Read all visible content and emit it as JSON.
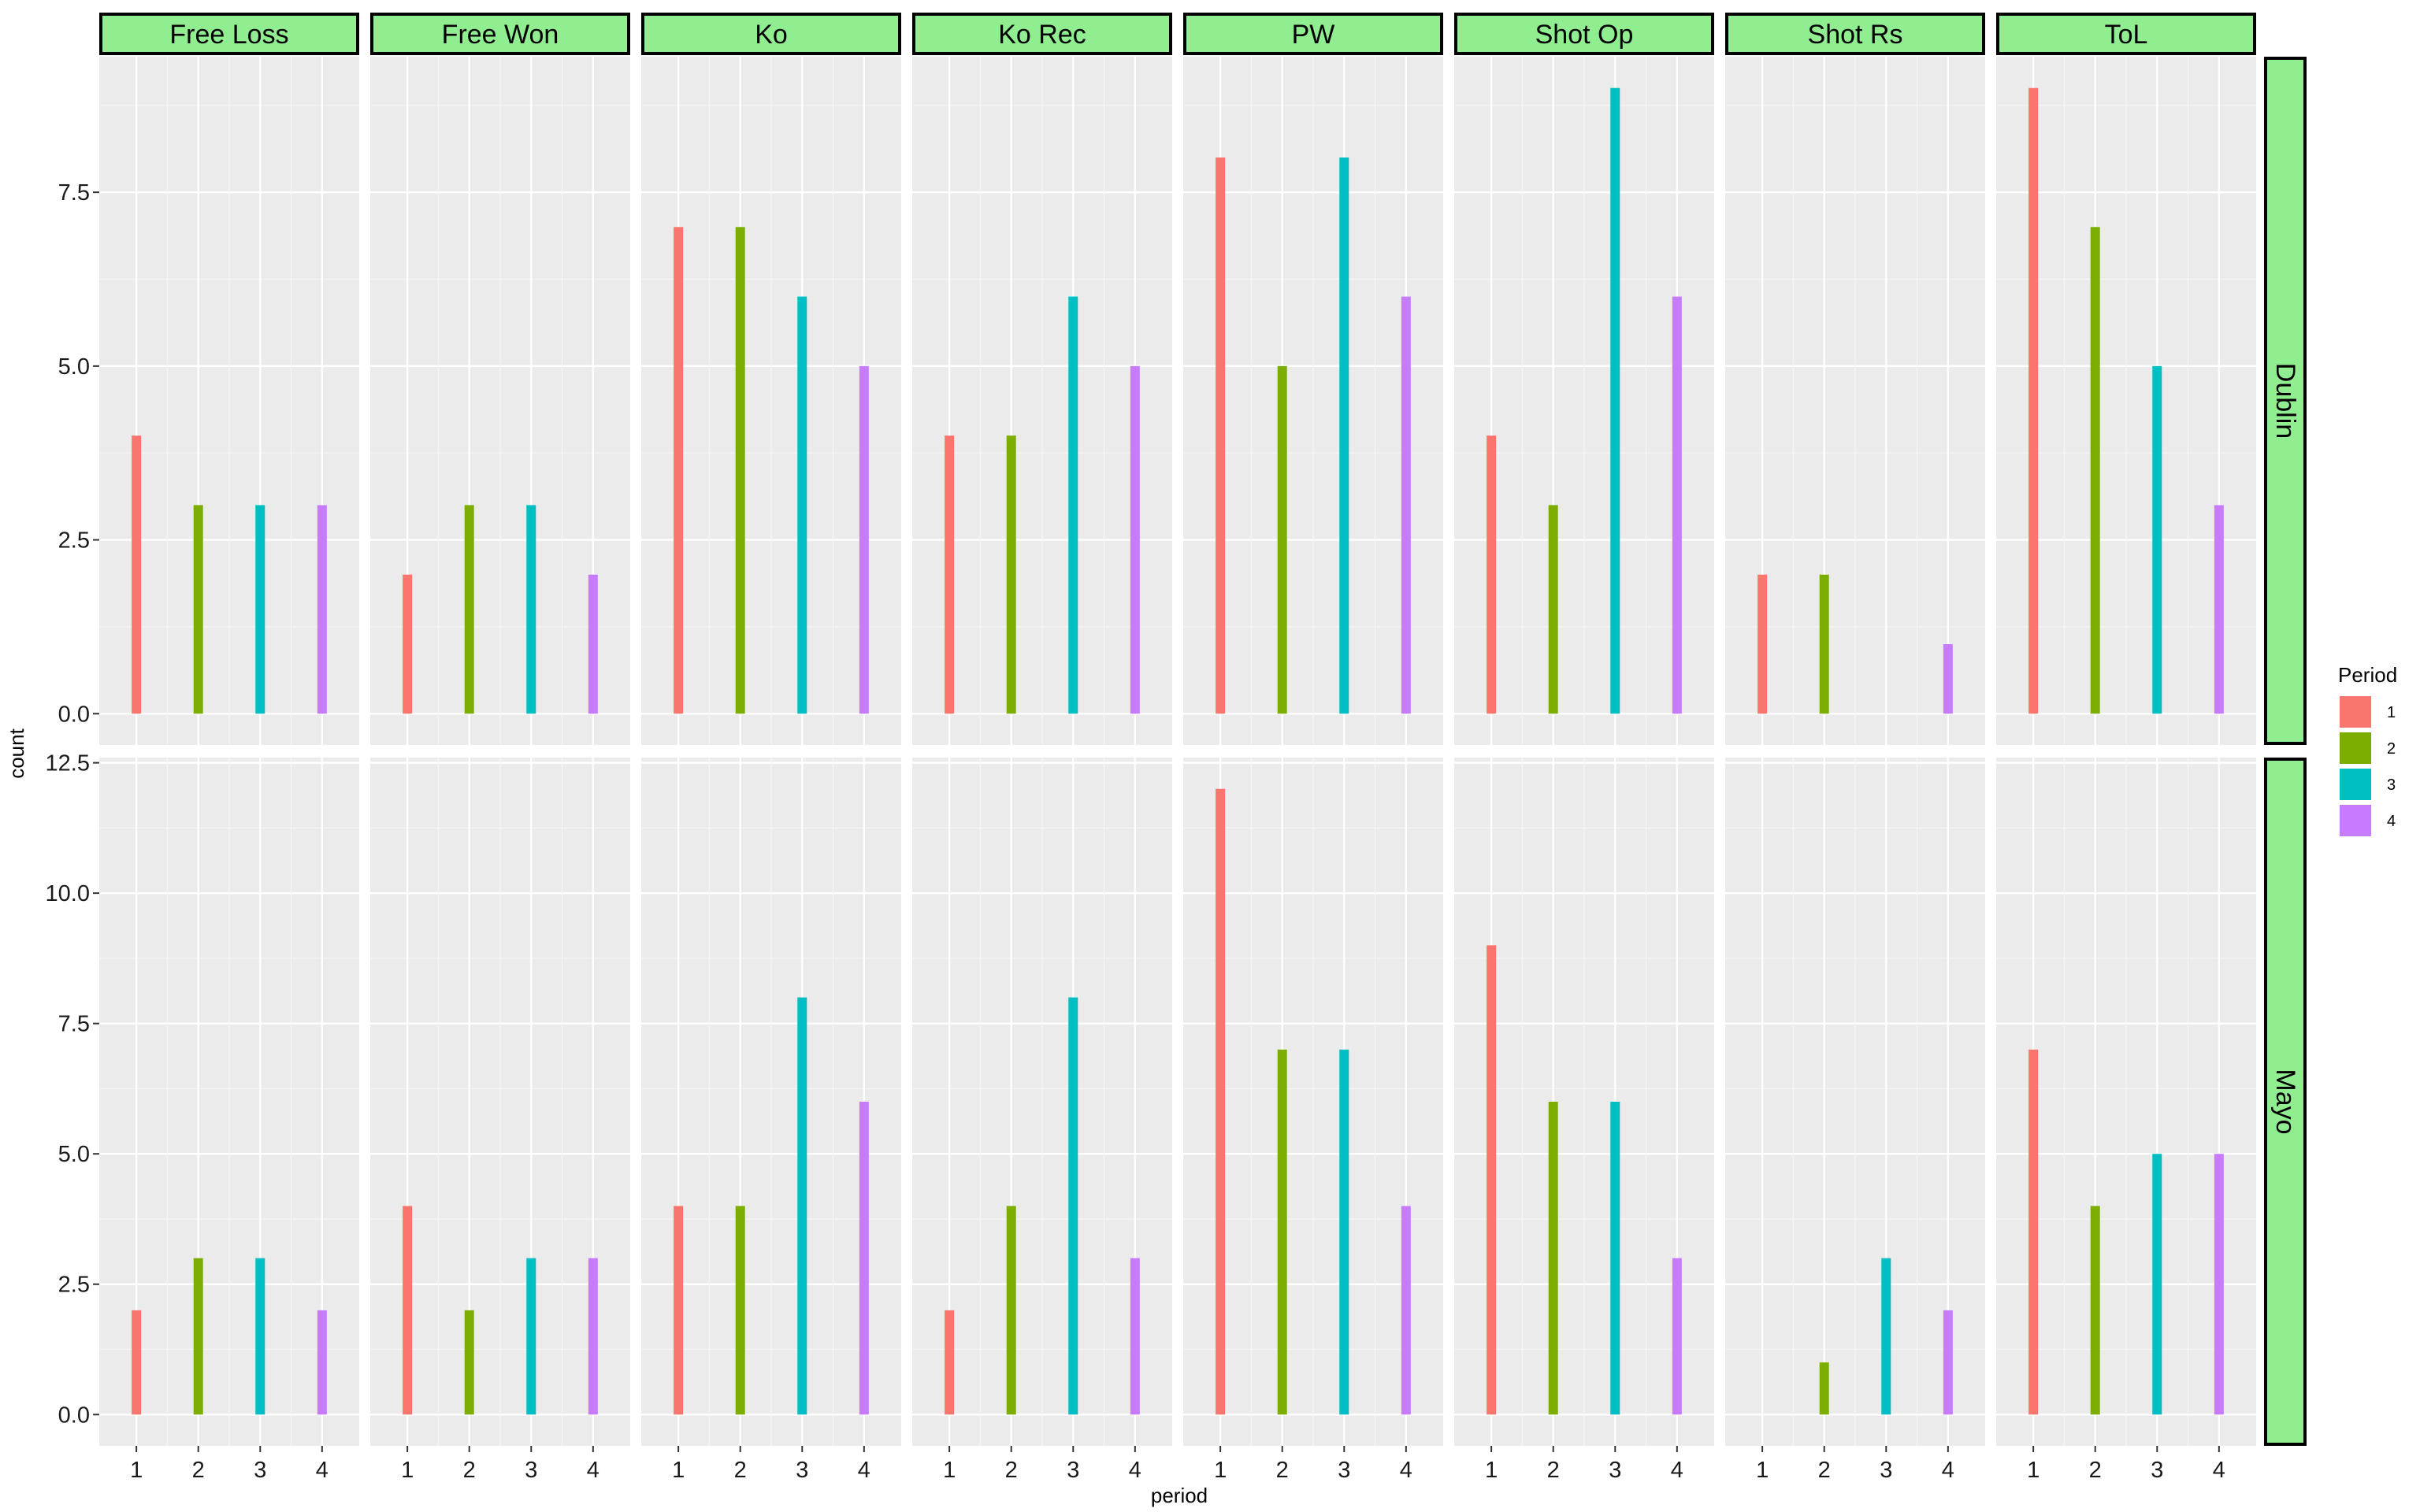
{
  "chart_data": {
    "type": "bar",
    "layout": "facet_grid",
    "xlabel": "period",
    "ylabel": "count",
    "x_categories": [
      "1",
      "2",
      "3",
      "4"
    ],
    "col_facets": [
      "Free Loss",
      "Free Won",
      "Ko",
      "Ko Rec",
      "PW",
      "Shot Op",
      "Shot Rs",
      "ToL"
    ],
    "row_facets": [
      "Dublin",
      "Mayo"
    ],
    "row_ylim": {
      "Dublin": [
        0,
        9
      ],
      "Mayo": [
        0,
        12
      ]
    },
    "row_yticks": {
      "Dublin": [
        "0.0",
        "2.5",
        "5.0",
        "7.5"
      ],
      "Mayo": [
        "0.0",
        "2.5",
        "5.0",
        "7.5",
        "10.0",
        "12.5"
      ]
    },
    "values": {
      "Dublin": {
        "Free Loss": [
          4,
          3,
          3,
          3
        ],
        "Free Won": [
          2,
          3,
          3,
          2
        ],
        "Ko": [
          7,
          7,
          6,
          5
        ],
        "Ko Rec": [
          4,
          4,
          6,
          5
        ],
        "PW": [
          8,
          5,
          8,
          6
        ],
        "Shot Op": [
          4,
          3,
          9,
          6
        ],
        "Shot Rs": [
          2,
          2,
          0,
          1
        ],
        "ToL": [
          9,
          7,
          5,
          3
        ]
      },
      "Mayo": {
        "Free Loss": [
          2,
          3,
          3,
          2
        ],
        "Free Won": [
          4,
          2,
          3,
          3
        ],
        "Ko": [
          4,
          4,
          8,
          6
        ],
        "Ko Rec": [
          2,
          4,
          8,
          3
        ],
        "PW": [
          12,
          7,
          7,
          4
        ],
        "Shot Op": [
          9,
          6,
          6,
          3
        ],
        "Shot Rs": [
          0,
          1,
          3,
          2
        ],
        "ToL": [
          7,
          4,
          5,
          5
        ]
      }
    },
    "legend": {
      "title": "Period",
      "position": "right",
      "entries": [
        {
          "label": "1",
          "color": "#F8766D"
        },
        {
          "label": "2",
          "color": "#7CAE00"
        },
        {
          "label": "3",
          "color": "#00BFC4"
        },
        {
          "label": "4",
          "color": "#C77CFF"
        }
      ]
    },
    "colors": {
      "panel_background": "#EBEBEB",
      "grid_major": "#FFFFFF",
      "grid_minor": "#F5F5F5",
      "strip_fill": "#90EE90",
      "strip_border": "#000000"
    },
    "grid": true
  }
}
